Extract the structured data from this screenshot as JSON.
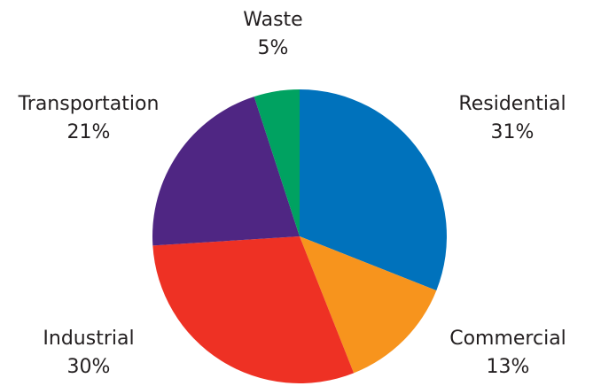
{
  "chart_data": {
    "type": "pie",
    "title": "",
    "start_angle_deg": 0,
    "direction": "clockwise",
    "slices": [
      {
        "name": "Residential",
        "value": 31,
        "label": "31%",
        "color": "#0072bc"
      },
      {
        "name": "Commercial",
        "value": 13,
        "label": "13%",
        "color": "#f7941d"
      },
      {
        "name": "Industrial",
        "value": 30,
        "label": "30%",
        "color": "#ee3124"
      },
      {
        "name": "Transportation",
        "value": 21,
        "label": "21%",
        "color": "#4f2683"
      },
      {
        "name": "Waste",
        "value": 5,
        "label": "5%",
        "color": "#00a261"
      }
    ]
  }
}
